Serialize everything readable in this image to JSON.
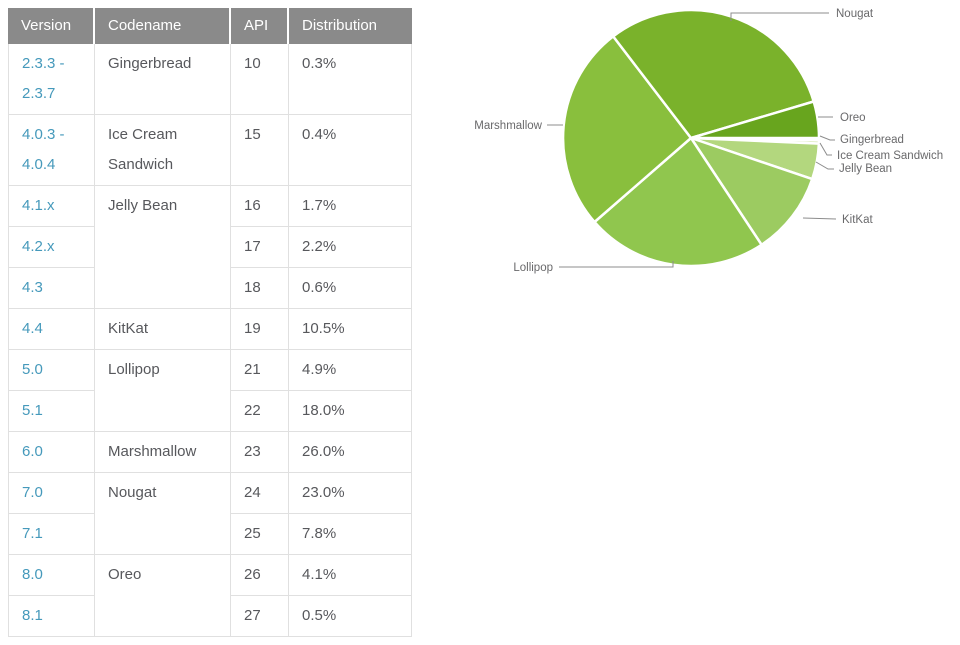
{
  "table": {
    "headers": [
      "Version",
      "Codename",
      "API",
      "Distribution"
    ],
    "rows": [
      {
        "version": "2.3.3 - 2.3.7",
        "codename": "Gingerbread",
        "span": 1,
        "api": "10",
        "distribution": "0.3%"
      },
      {
        "version": "4.0.3 - 4.0.4",
        "codename": "Ice Cream Sandwich",
        "span": 1,
        "api": "15",
        "distribution": "0.4%"
      },
      {
        "version": "4.1.x",
        "codename": "Jelly Bean",
        "span": 3,
        "api": "16",
        "distribution": "1.7%"
      },
      {
        "version": "4.2.x",
        "api": "17",
        "distribution": "2.2%"
      },
      {
        "version": "4.3",
        "api": "18",
        "distribution": "0.6%"
      },
      {
        "version": "4.4",
        "codename": "KitKat",
        "span": 1,
        "api": "19",
        "distribution": "10.5%"
      },
      {
        "version": "5.0",
        "codename": "Lollipop",
        "span": 2,
        "api": "21",
        "distribution": "4.9%"
      },
      {
        "version": "5.1",
        "api": "22",
        "distribution": "18.0%"
      },
      {
        "version": "6.0",
        "codename": "Marshmallow",
        "span": 1,
        "api": "23",
        "distribution": "26.0%"
      },
      {
        "version": "7.0",
        "codename": "Nougat",
        "span": 2,
        "api": "24",
        "distribution": "23.0%"
      },
      {
        "version": "7.1",
        "api": "25",
        "distribution": "7.8%"
      },
      {
        "version": "8.0",
        "codename": "Oreo",
        "span": 2,
        "api": "26",
        "distribution": "4.1%"
      },
      {
        "version": "8.1",
        "api": "27",
        "distribution": "0.5%"
      }
    ]
  },
  "chart_data": {
    "type": "pie",
    "legend_position": "labeled-callouts",
    "start_angle_deg": 0,
    "direction": "clockwise",
    "slices": [
      {
        "label": "Gingerbread",
        "value": 0.3,
        "color": "#d5e7ae"
      },
      {
        "label": "Ice Cream Sandwich",
        "value": 0.4,
        "color": "#cbe29b"
      },
      {
        "label": "Jelly Bean",
        "value": 4.5,
        "color": "#b3d77e"
      },
      {
        "label": "KitKat",
        "value": 10.5,
        "color": "#9ccb61"
      },
      {
        "label": "Lollipop",
        "value": 22.9,
        "color": "#90c64e"
      },
      {
        "label": "Marshmallow",
        "value": 26.0,
        "color": "#89bf3d"
      },
      {
        "label": "Nougat",
        "value": 30.8,
        "color": "#7ab22b"
      },
      {
        "label": "Oreo",
        "value": 4.6,
        "color": "#68a51e"
      }
    ]
  },
  "colors": {
    "header_bg": "#8a8a8a",
    "header_text": "#ffffff",
    "version_link": "#4599bb",
    "body_text": "#57585c",
    "border": "#e0e0e0",
    "callout_line": "#8c8c8c",
    "callout_text": "#69696b"
  }
}
